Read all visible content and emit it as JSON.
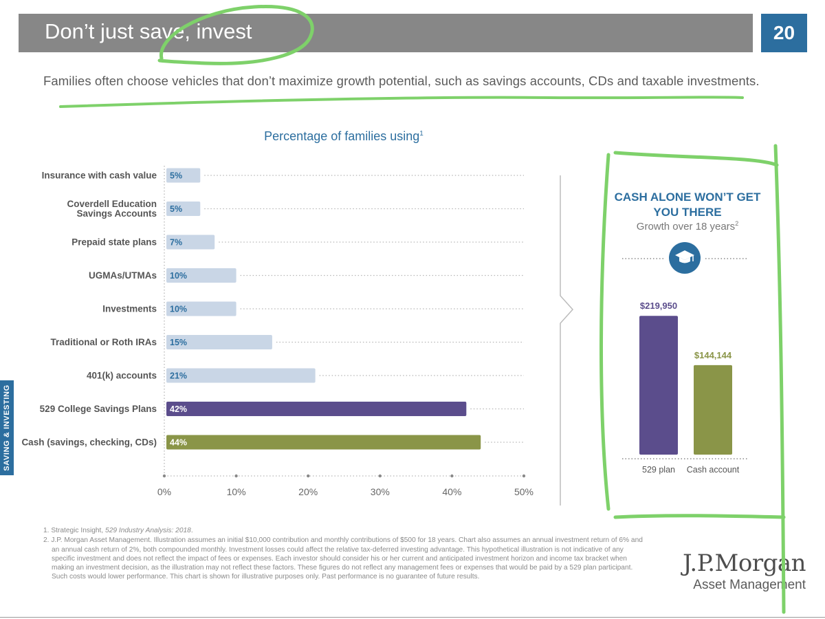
{
  "header": {
    "title": "Don’t just save, invest",
    "page_number": "20"
  },
  "subtitle": "Families often choose vehicles that don’t maximize growth potential, such as savings accounts, CDs and taxable investments.",
  "side_tab": "SAVING & INVESTING",
  "chart_data": [
    {
      "type": "bar",
      "orientation": "horizontal",
      "title": "Percentage of families using",
      "title_footnote": "1",
      "categories": [
        "Insurance with cash value",
        "Coverdell Education Savings Accounts",
        "Prepaid state plans",
        "UGMAs/UTMAs",
        "Investments",
        "Traditional or Roth IRAs",
        "401(k) accounts",
        "529 College Savings Plans",
        "Cash (savings, checking, CDs)"
      ],
      "category_lines": [
        [
          "Insurance with cash value"
        ],
        [
          "Coverdell Education",
          "Savings Accounts"
        ],
        [
          "Prepaid state plans"
        ],
        [
          "UGMAs/UTMAs"
        ],
        [
          "Investments"
        ],
        [
          "Traditional or Roth IRAs"
        ],
        [
          "401(k) accounts"
        ],
        [
          "529 College Savings Plans"
        ],
        [
          "Cash (savings, checking, CDs)"
        ]
      ],
      "values": [
        5,
        5,
        7,
        10,
        10,
        15,
        21,
        42,
        44
      ],
      "value_labels": [
        "5%",
        "5%",
        "7%",
        "10%",
        "10%",
        "15%",
        "21%",
        "42%",
        "44%"
      ],
      "bar_colors": [
        "#c9d6e6",
        "#c9d6e6",
        "#c9d6e6",
        "#c9d6e6",
        "#c9d6e6",
        "#c9d6e6",
        "#c9d6e6",
        "#5b4d8c",
        "#8a9548"
      ],
      "xlim": [
        0,
        50
      ],
      "xticks": [
        0,
        10,
        20,
        30,
        40,
        50
      ],
      "xtick_labels": [
        "0%",
        "10%",
        "20%",
        "30%",
        "40%",
        "50%"
      ],
      "xlabel": "",
      "ylabel": ""
    },
    {
      "type": "bar",
      "title": "CASH ALONE WON’T GET YOU THERE",
      "subtitle": "Growth over 18 years",
      "subtitle_footnote": "2",
      "categories": [
        "529 plan",
        "Cash account"
      ],
      "values": [
        219950,
        144144
      ],
      "value_labels": [
        "$219,950",
        "$144,144"
      ],
      "colors": [
        "#5b4d8c",
        "#8a9548"
      ],
      "ylim": [
        0,
        235000
      ]
    }
  ],
  "callout": {
    "icon": "graduation-cap-icon"
  },
  "footnotes": {
    "note1_prefix": "1. Strategic Insight, ",
    "note1_italic": "529 Industry Analysis: 2018",
    "note1_suffix": ".",
    "note2": "2. J.P. Morgan Asset Management. Illustration assumes an initial $10,000 contribution and monthly contributions of $500 for 18 years. Chart also assumes an annual investment return of 6% and an annual cash return of 2%, both compounded monthly. Investment losses could affect the relative tax-deferred investing advantage. This hypothetical illustration is not indicative of any specific investment and does not reflect the impact of fees or expenses. Each investor should consider his or her current and anticipated investment horizon and income tax bracket when making an investment decision, as the illustration may not reflect these factors. These figures do not reflect any management fees or expenses that would be paid by a 529 plan participant. Such costs would lower performance. This chart is shown for illustrative purposes only. Past performance is no guarantee of future results."
  },
  "logo": {
    "name": "J.P.Morgan",
    "sub": "Asset Management"
  },
  "colors": {
    "accent": "#2c6e9f",
    "title_bar": "#878787",
    "annotation": "#7ed16a"
  }
}
